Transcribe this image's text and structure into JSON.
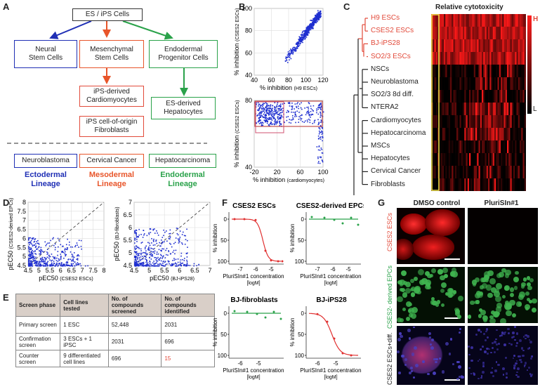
{
  "panel_labels": [
    "A",
    "B",
    "C",
    "D",
    "E",
    "F",
    "G"
  ],
  "panelA": {
    "top": "ES / iPS Cells",
    "level1": [
      "Neural\nStem Cells",
      "Mesenchymal\nStem Cells",
      "Endodermal\nProgenitor Cells"
    ],
    "derived": [
      "iPS-derived\nCardiomyocytes",
      "iPS cell-of-origin\nFibroblasts",
      "ES-derived\nHepatocytes"
    ],
    "cancers": [
      "Neuroblastoma",
      "Cervical Cancer",
      "Hepatocarcinoma"
    ],
    "lineages": [
      "Ectodermal\nLineage",
      "Mesodermal\nLineage",
      "Endodermal\nLineage"
    ],
    "colors": {
      "blue": "#1f2fb5",
      "orange": "#e8552a",
      "green": "#2aa24a",
      "red": "#e24a3a"
    }
  },
  "panelB": {
    "top": {
      "xlabel_main": "% inhibition",
      "xlabel_sub": "(H9 ESCs)",
      "ylabel_main": "% inhibition",
      "ylabel_sub": "(CSES2 ESCs)",
      "xticks": [
        "40",
        "60",
        "80",
        "100",
        "120"
      ],
      "yticks": [
        "40",
        "60",
        "80",
        "100"
      ]
    },
    "bottom": {
      "xlabel_main": "% inhibition",
      "xlabel_sub": "(cardiomyocytes)",
      "ylabel_main": "% inhibition",
      "ylabel_sub": "(CSES2 ESCs)",
      "xticks": [
        "-20",
        "20",
        "60",
        "100"
      ],
      "yticks": [
        "40",
        "80"
      ]
    }
  },
  "panelC": {
    "title": "Relative cytotoxicity",
    "rows_highlight": [
      "H9 ESCs",
      "CSES2 ESCs",
      "BJ-iPS28",
      "SO2/3 ESCs"
    ],
    "rows": [
      "NSCs",
      "Neuroblastoma",
      "SO2/3 8d diff.",
      "NTERA2",
      "Cardiomyocytes",
      "Hepatocarcinoma",
      "MSCs",
      "Hepatocytes",
      "Cervical Cancer",
      "Fibroblasts"
    ],
    "scale_high": "H",
    "scale_low": "L"
  },
  "panelD": {
    "left": {
      "xlabel_main": "pEC50",
      "xlabel_sub": "(CSES2 ESCs)",
      "ylabel_main": "pEC50",
      "ylabel_sub": "(CSES2-derived EPCs)",
      "xticks": [
        "4.5",
        "5",
        "5.5",
        "6",
        "6.5",
        "7",
        "7.5",
        "8"
      ],
      "yticks": [
        "4.5",
        "5",
        "5.5",
        "6",
        "6.5",
        "7",
        "7.5",
        "8"
      ]
    },
    "right": {
      "xlabel_main": "pEC50",
      "xlabel_sub": "(BJ-iPS28)",
      "ylabel_main": "pEC50",
      "ylabel_sub": "(BJ-fibroblasts)",
      "xticks": [
        "4.5",
        "5",
        "5.5",
        "6",
        "6.5",
        "7"
      ],
      "yticks": [
        "4.5",
        "5",
        "5.5",
        "6",
        "6.5",
        "7"
      ]
    }
  },
  "panelE": {
    "headers": [
      "Screen phase",
      "Cell lines tested",
      "No. of compounds screened",
      "No. of compounds identified"
    ],
    "rows": [
      [
        "Primary screen",
        "1 ESC",
        "52,448",
        "2031"
      ],
      [
        "Confirmation screen",
        "3 ESCs + 1 iPSC",
        "2031",
        "696"
      ],
      [
        "Counter screen",
        "9 differentiated cell lines",
        "696",
        "15"
      ]
    ]
  },
  "panelF": {
    "plots": [
      {
        "title": "CSES2 ESCs",
        "xticks": [
          "-7",
          "-6",
          "-5"
        ],
        "yticks": [
          "0",
          "50",
          "100"
        ]
      },
      {
        "title": "CSES2-derived EPCs",
        "xticks": [
          "-7",
          "-6",
          "-5"
        ],
        "yticks": [
          "0",
          "50",
          "100"
        ]
      },
      {
        "title": "BJ-fibroblasts",
        "xticks": [
          "-6",
          "-5"
        ],
        "yticks": [
          "0",
          "50",
          "100"
        ]
      },
      {
        "title": "BJ-iPS28",
        "xticks": [
          "-6",
          "-5"
        ],
        "yticks": [
          "0",
          "50",
          "100"
        ]
      }
    ],
    "ylabel": "% inhibition",
    "xlabel": "PluriSIn#1 concentration",
    "xunit": "[logM]"
  },
  "panelG": {
    "col_titles": [
      "DMSO control",
      "PluriSIn#1"
    ],
    "row_labels": [
      "CSES2 ESCs",
      "CSES2- derived EPCs",
      "CSES2 ESCs+diff."
    ]
  }
}
